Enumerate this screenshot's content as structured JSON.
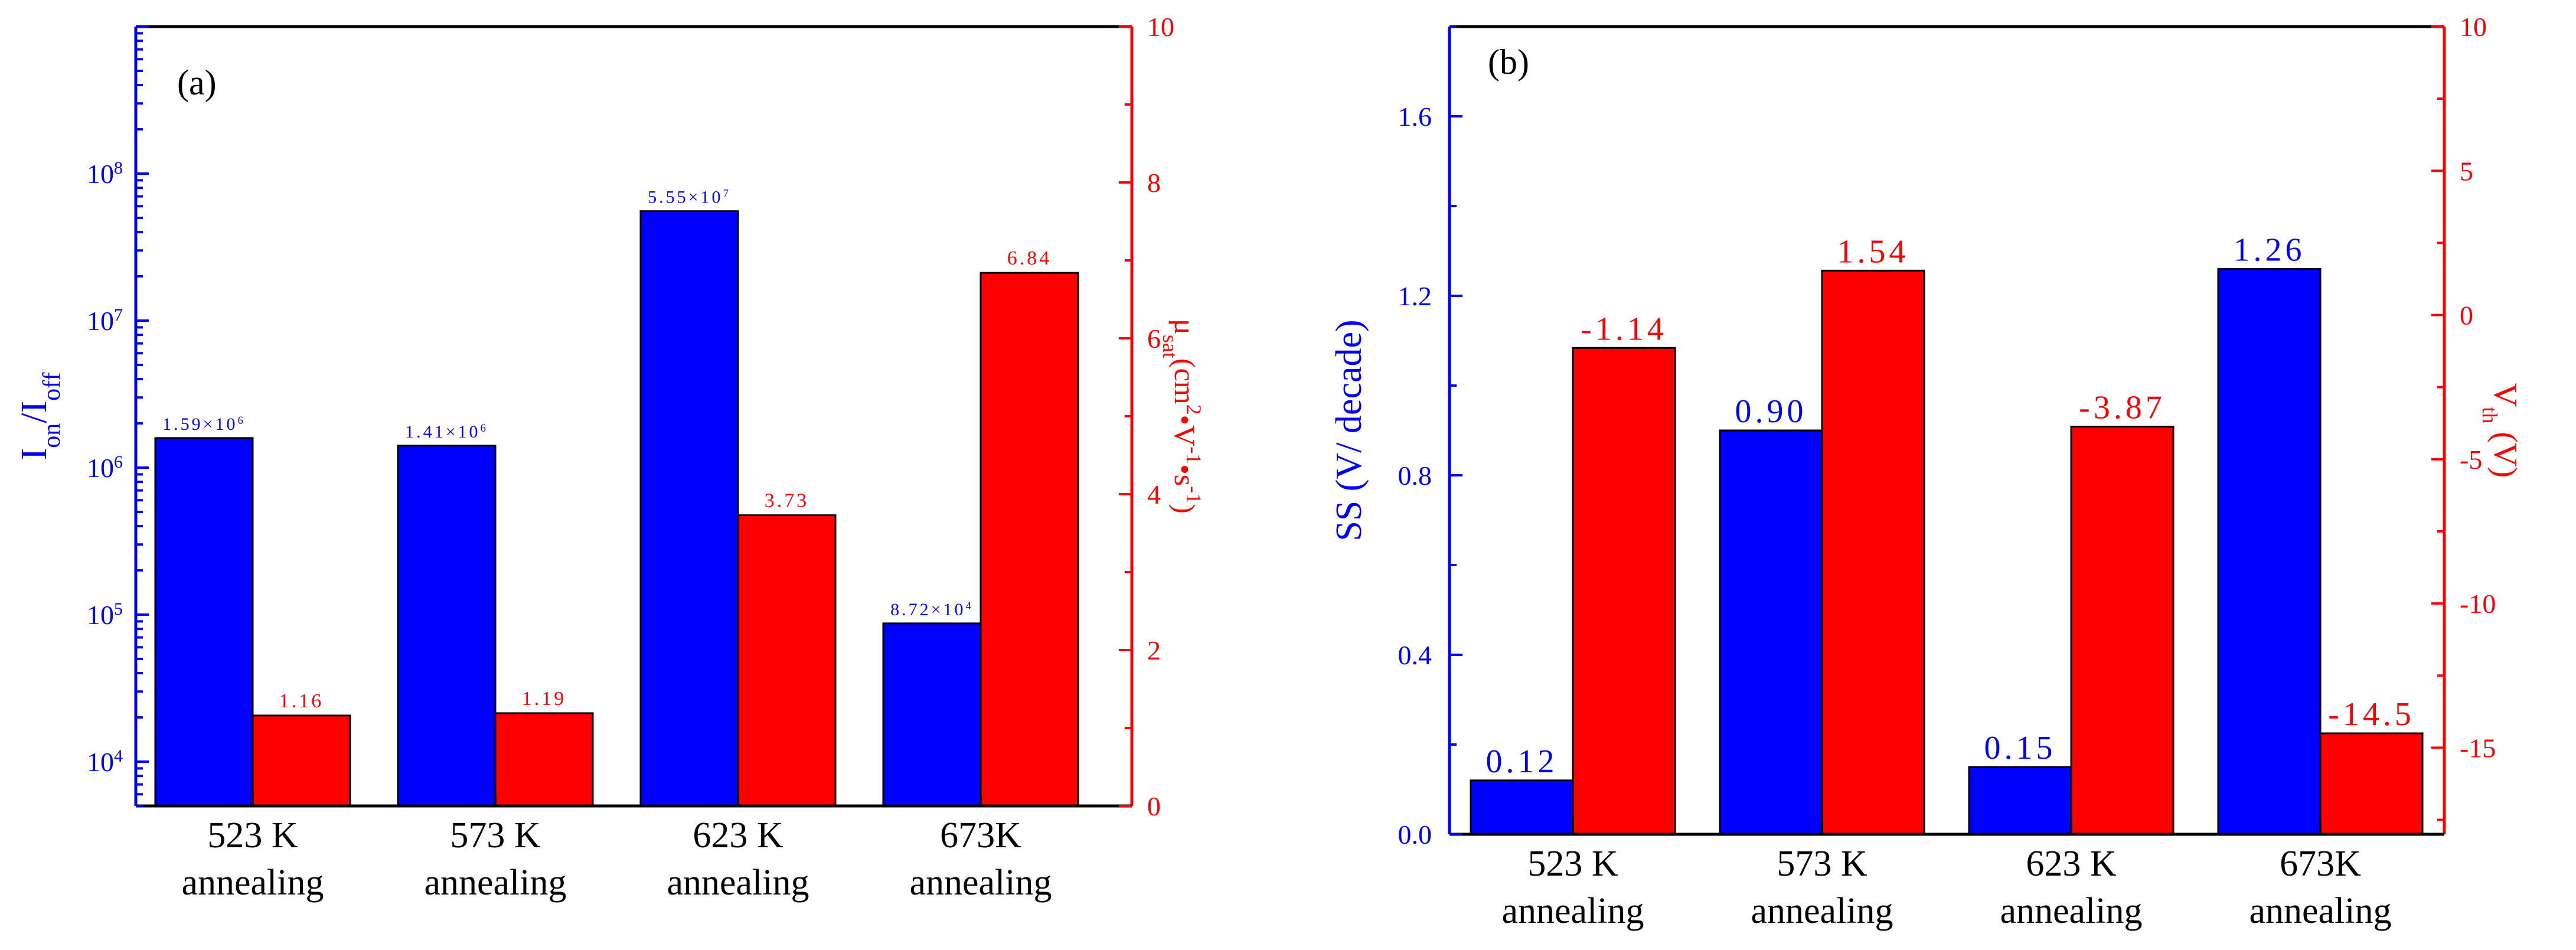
{
  "chart_data": [
    {
      "type": "bar",
      "panel_label": "(a)",
      "categories": [
        [
          "523 K",
          "annealing"
        ],
        [
          "573 K",
          "annealing"
        ],
        [
          "623 K",
          "annealing"
        ],
        [
          "673K",
          "annealing"
        ]
      ],
      "series": [
        {
          "name": "Ion/Ioff",
          "axis": "left",
          "color": "#0000ff",
          "values": [
            1590000,
            1410000,
            55500000,
            87200
          ],
          "labels": [
            {
              "mantissa": "1.59×10",
              "exp": "6"
            },
            {
              "mantissa": "1.41×10",
              "exp": "6"
            },
            {
              "mantissa": "5.55×10",
              "exp": "7"
            },
            {
              "mantissa": "8.72×10",
              "exp": "4"
            }
          ]
        },
        {
          "name": "μsat",
          "axis": "right",
          "color": "#ff0000",
          "values": [
            1.16,
            1.19,
            3.73,
            6.84
          ],
          "labels": [
            "1.16",
            "1.19",
            "3.73",
            "6.84"
          ]
        }
      ],
      "left_axis": {
        "scale": "log",
        "range": [
          5000,
          1000000000
        ],
        "ticks": [
          {
            "value": 10000,
            "exp": "4"
          },
          {
            "value": 100000,
            "exp": "5"
          },
          {
            "value": 1000000,
            "exp": "6"
          },
          {
            "value": 10000000,
            "exp": "7"
          },
          {
            "value": 100000000,
            "exp": "8"
          }
        ],
        "tick_base": "10",
        "label_parts": [
          {
            "t": "I",
            "sub": false
          },
          {
            "t": "on",
            "sub": true
          },
          {
            "t": "/I",
            "sub": false
          },
          {
            "t": "off",
            "sub": true
          }
        ],
        "color": "#0000ff"
      },
      "right_axis": {
        "scale": "linear",
        "range": [
          0,
          10
        ],
        "ticks": [
          "0",
          "2",
          "4",
          "6",
          "8",
          "10"
        ],
        "label_parts": [
          {
            "t": "μ",
            "kind": "n"
          },
          {
            "t": "sat",
            "kind": "sub"
          },
          {
            "t": "(cm",
            "kind": "n"
          },
          {
            "t": "2",
            "kind": "sup"
          },
          {
            "t": "•V",
            "kind": "n"
          },
          {
            "t": "-1",
            "kind": "sup"
          },
          {
            "t": "•s",
            "kind": "n"
          },
          {
            "t": "-1",
            "kind": "sup"
          },
          {
            "t": ")",
            "kind": "n"
          }
        ],
        "color": "#ff0000"
      }
    },
    {
      "type": "bar",
      "panel_label": "(b)",
      "categories": [
        [
          "523 K",
          "annealing"
        ],
        [
          "573 K",
          "annealing"
        ],
        [
          "623 K",
          "annealing"
        ],
        [
          "673K",
          "annealing"
        ]
      ],
      "series": [
        {
          "name": "SS",
          "axis": "left",
          "color": "#0000ff",
          "values": [
            0.12,
            0.9,
            0.15,
            1.26
          ],
          "labels": [
            "0.12",
            "0.90",
            "0.15",
            "1.26"
          ]
        },
        {
          "name": "Vth",
          "axis": "right",
          "color": "#ff0000",
          "values": [
            -1.14,
            1.54,
            -3.87,
            -14.5
          ],
          "labels": [
            "-1.14",
            "1.54",
            "-3.87",
            "-14.5"
          ]
        }
      ],
      "left_axis": {
        "scale": "linear",
        "range": [
          0,
          1.8
        ],
        "ticks": [
          "0.0",
          "0.4",
          "0.8",
          "1.2",
          "1.6"
        ],
        "label": "SS (V/ decade)",
        "color": "#0000ff"
      },
      "right_axis": {
        "scale": "linear",
        "range": [
          -18,
          10
        ],
        "ticks": [
          "-15",
          "-10",
          "-5",
          "0",
          "5",
          "10"
        ],
        "label_parts": [
          {
            "t": "V",
            "kind": "n"
          },
          {
            "t": "th",
            "kind": "sub"
          },
          {
            "t": " (V)",
            "kind": "n"
          }
        ],
        "color": "#ff0000"
      }
    }
  ]
}
